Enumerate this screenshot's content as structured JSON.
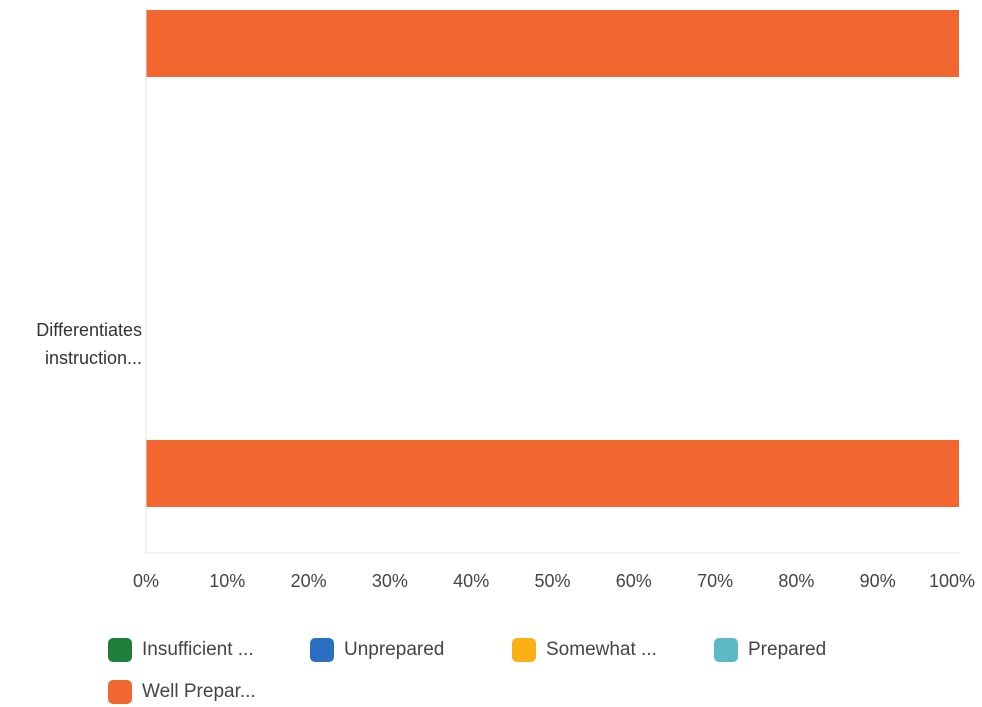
{
  "chart_data": {
    "type": "bar",
    "orientation": "horizontal",
    "stacked": true,
    "categories": [
      "Differentiates instruction..."
    ],
    "category_label_lines": [
      "Differentiates",
      "instruction..."
    ],
    "series": [
      {
        "name": "Insufficient ...",
        "color": "#1f7f3a",
        "values": [
          0
        ]
      },
      {
        "name": "Unprepared",
        "color": "#2b6fc2",
        "values": [
          0
        ]
      },
      {
        "name": "Somewhat ...",
        "color": "#f9b115",
        "values": [
          0
        ]
      },
      {
        "name": "Prepared",
        "color": "#5bbac6",
        "values": [
          0
        ]
      },
      {
        "name": "Well Prepar...",
        "color": "#f26630",
        "values": [
          100
        ]
      }
    ],
    "bars_visible": 2,
    "xlim": [
      0,
      100
    ],
    "x_ticks": [
      "0%",
      "10%",
      "20%",
      "30%",
      "40%",
      "50%",
      "60%",
      "70%",
      "80%",
      "90%",
      "100%"
    ],
    "grid": false,
    "legend_position": "bottom"
  }
}
